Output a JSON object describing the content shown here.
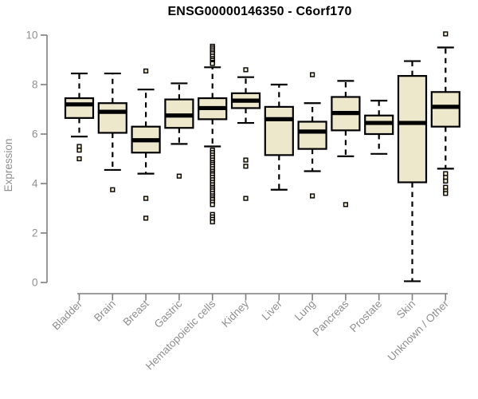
{
  "title": "ENSG00000146350 - C6orf170",
  "colors": {
    "background": "#FFFFFF",
    "box_fill": "#EDE7CC",
    "box_border": "#000000",
    "median": "#000000",
    "whisker": "#000000",
    "axis_line": "#7E7E7E",
    "axis_text": "#8F8F8F",
    "title_text": "#000000"
  },
  "y_axis": {
    "label": "Expression",
    "ticks": [
      0,
      2,
      4,
      6,
      8,
      10
    ],
    "min": 0,
    "max": 10
  },
  "chart_data": {
    "type": "boxplot",
    "title": "ENSG00000146350 - C6orf170",
    "xlabel": "",
    "ylabel": "Expression",
    "ylim": [
      0,
      10
    ],
    "grid": false,
    "legend": "none",
    "categories": [
      "Bladder",
      "Brain",
      "Breast",
      "Gastric",
      "Hematopoietic cells",
      "Kidney",
      "Liver",
      "Lung",
      "Pancreas",
      "Prostate",
      "Skin",
      "Unknown / Other"
    ],
    "series": [
      {
        "name": "Bladder",
        "whisker_low": 5.9,
        "q1": 6.65,
        "median": 7.2,
        "q3": 7.45,
        "whisker_high": 8.45,
        "outliers": [
          5.5,
          5.35,
          5.0
        ]
      },
      {
        "name": "Brain",
        "whisker_low": 4.55,
        "q1": 6.05,
        "median": 6.9,
        "q3": 7.25,
        "whisker_high": 8.45,
        "outliers": [
          3.75
        ]
      },
      {
        "name": "Breast",
        "whisker_low": 4.4,
        "q1": 5.25,
        "median": 5.75,
        "q3": 6.3,
        "whisker_high": 7.8,
        "outliers": [
          8.55,
          3.4,
          2.6
        ]
      },
      {
        "name": "Gastric",
        "whisker_low": 5.6,
        "q1": 6.25,
        "median": 6.75,
        "q3": 7.4,
        "whisker_high": 8.05,
        "outliers": [
          4.3
        ]
      },
      {
        "name": "Hematopoietic cells",
        "whisker_low": 5.5,
        "q1": 6.6,
        "median": 7.05,
        "q3": 7.45,
        "whisker_high": 8.7,
        "outliers": [
          9.55,
          9.48,
          9.4,
          9.32,
          9.25,
          9.15,
          9.05,
          8.98,
          8.9,
          8.85,
          5.35,
          5.25,
          5.15,
          5.05,
          4.95,
          4.85,
          4.78,
          4.7,
          4.6,
          4.5,
          4.42,
          4.35,
          4.25,
          4.15,
          4.05,
          3.95,
          3.85,
          3.78,
          3.7,
          3.6,
          3.5,
          3.42,
          3.35,
          3.25,
          3.15,
          2.75,
          2.65,
          2.55,
          2.45
        ]
      },
      {
        "name": "Kidney",
        "whisker_low": 6.45,
        "q1": 7.05,
        "median": 7.35,
        "q3": 7.65,
        "whisker_high": 8.3,
        "outliers": [
          8.6,
          4.95,
          4.7,
          3.4
        ]
      },
      {
        "name": "Liver",
        "whisker_low": 3.75,
        "q1": 5.15,
        "median": 6.6,
        "q3": 7.1,
        "whisker_high": 8.0,
        "outliers": []
      },
      {
        "name": "Lung",
        "whisker_low": 4.5,
        "q1": 5.4,
        "median": 6.1,
        "q3": 6.5,
        "whisker_high": 7.25,
        "outliers": [
          8.4,
          3.5
        ]
      },
      {
        "name": "Pancreas",
        "whisker_low": 5.1,
        "q1": 6.15,
        "median": 6.85,
        "q3": 7.5,
        "whisker_high": 8.15,
        "outliers": [
          3.15
        ]
      },
      {
        "name": "Prostate",
        "whisker_low": 5.2,
        "q1": 6.0,
        "median": 6.45,
        "q3": 6.75,
        "whisker_high": 7.35,
        "outliers": []
      },
      {
        "name": "Skin",
        "whisker_low": 0.05,
        "q1": 4.05,
        "median": 6.45,
        "q3": 8.35,
        "whisker_high": 8.95,
        "outliers": []
      },
      {
        "name": "Unknown / Other",
        "whisker_low": 4.6,
        "q1": 6.3,
        "median": 7.1,
        "q3": 7.7,
        "whisker_high": 9.5,
        "outliers": [
          10.05,
          4.4,
          4.25,
          4.1,
          3.85,
          3.7,
          3.6
        ]
      }
    ]
  }
}
